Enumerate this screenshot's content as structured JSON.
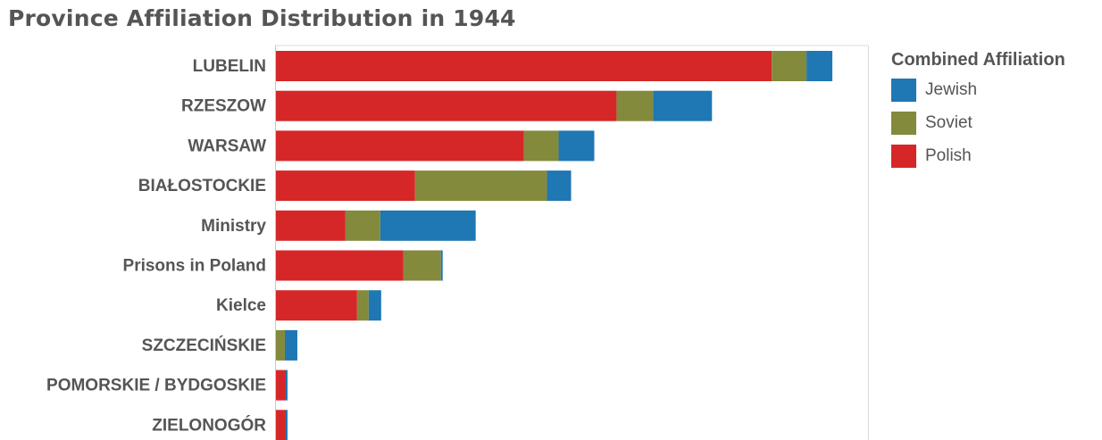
{
  "chart_data": {
    "type": "bar",
    "orientation": "horizontal",
    "stacked": true,
    "title": "Province Affiliation Distribution in 1944",
    "categories": [
      "LUBELIN",
      "RZESZOW",
      "WARSAW",
      "BIAŁOSTOCKIE",
      "Ministry",
      "Prisons in Poland",
      "Kielce",
      "SZCZECIŃSKIE",
      "POMORSKIE / BYDGOSKIE",
      "ZIELONOGÓR"
    ],
    "series": [
      {
        "name": "Polish",
        "color": "#d62728",
        "values": [
          557,
          383,
          279,
          157,
          79,
          144,
          92,
          0,
          12,
          12
        ]
      },
      {
        "name": "Soviet",
        "color": "#848a3c",
        "values": [
          39,
          41,
          39,
          148,
          39,
          42,
          13,
          11,
          0,
          0
        ]
      },
      {
        "name": "Jewish",
        "color": "#1f77b4",
        "values": [
          29,
          66,
          40,
          27,
          107,
          2,
          14,
          14,
          2,
          2
        ]
      }
    ],
    "xlim": [
      0,
      665
    ],
    "grid": false,
    "legend": {
      "title": "Combined Affiliation",
      "items": [
        "Jewish",
        "Soviet",
        "Polish"
      ],
      "position": "right"
    }
  }
}
